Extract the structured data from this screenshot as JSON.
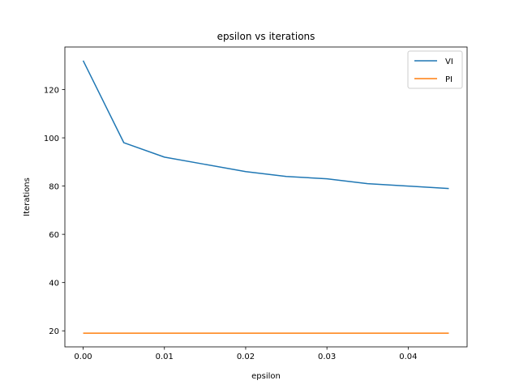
{
  "chart_data": {
    "type": "line",
    "title": "epsilon vs iterations",
    "xlabel": "epsilon",
    "ylabel": "Iterations",
    "x": [
      0.0,
      0.005,
      0.01,
      0.015,
      0.02,
      0.025,
      0.03,
      0.035,
      0.04,
      0.045
    ],
    "series": [
      {
        "name": "VI",
        "color": "#1f77b4",
        "values": [
          132,
          98,
          92,
          89,
          86,
          84,
          83,
          81,
          80,
          79
        ]
      },
      {
        "name": "PI",
        "color": "#ff7f0e",
        "values": [
          19,
          19,
          19,
          19,
          19,
          19,
          19,
          19,
          19,
          19
        ]
      }
    ],
    "xlim": [
      -0.00225,
      0.04725
    ],
    "ylim": [
      13.35,
      137.65
    ],
    "xticks": [
      0.0,
      0.01,
      0.02,
      0.03,
      0.04
    ],
    "xtick_labels": [
      "0.00",
      "0.01",
      "0.02",
      "0.03",
      "0.04"
    ],
    "yticks": [
      20,
      40,
      60,
      80,
      100,
      120
    ],
    "ytick_labels": [
      "20",
      "40",
      "60",
      "80",
      "100",
      "120"
    ],
    "grid": false,
    "legend_position": "top-right"
  }
}
